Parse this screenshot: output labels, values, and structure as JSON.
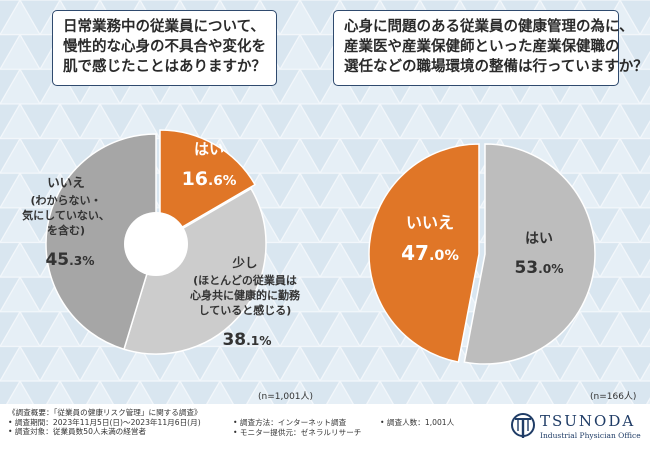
{
  "colors": {
    "orange": "#e07627",
    "gray_dark": "#a6a6a6",
    "gray_mid": "#bdbdbd",
    "gray_light": "#cccccc",
    "navy": "#2f4a6e"
  },
  "left_panel": {
    "title_lines": [
      "日常業務中の従業員について、",
      "慢性的な心身の不具合や変化を",
      "肌で感じたことはありますか？"
    ],
    "sample": "(n=1,001人)"
  },
  "right_panel": {
    "title_lines": [
      "心身に問題のある従業員の健康管理の為に、",
      "産業医や産業保健師といった産業保健職の",
      "選任などの職場環境の整備は行っていますか？"
    ],
    "sample": "(n=166人)"
  },
  "chart_data": [
    {
      "type": "pie",
      "variant": "donut",
      "title": "日常業務中の従業員について、慢性的な心身の不具合や変化を肌で感じたことはありますか？",
      "slices": [
        {
          "label": "はい",
          "value": 16.6,
          "display": "16.6%",
          "sublabel": [],
          "color": "#e07627"
        },
        {
          "label": "少し",
          "value": 38.1,
          "display": "38.1%",
          "sublabel": [
            "(ほとんどの従業員は",
            "心身共に健康的に勤務",
            "していると感じる)"
          ],
          "color": "#cccccc"
        },
        {
          "label": "いいえ",
          "value": 45.3,
          "display": "45.3%",
          "sublabel": [
            "(わからない・",
            "気にしていない、",
            "を含む)"
          ],
          "color": "#a6a6a6"
        }
      ]
    },
    {
      "type": "pie",
      "title": "心身に問題のある従業員の健康管理の為に、産業医や産業保健師といった産業保健職の選任などの職場環境の整備は行っていますか？",
      "slices": [
        {
          "label": "はい",
          "value": 53.0,
          "display": "53.0%",
          "sublabel": [],
          "color": "#bdbdbd"
        },
        {
          "label": "いいえ",
          "value": 47.0,
          "display": "47.0%",
          "sublabel": [],
          "color": "#e07627"
        }
      ]
    }
  ],
  "footer": {
    "col1": [
      "《調査概要：「従業員の健康リスク管理」に関する調査》",
      "• 調査期間：2023年11月5日(日)〜2023年11月6日(月)",
      "• 調査対象：従業員数50人未満の経営者"
    ],
    "col2": [
      "• 調査方法：インターネット調査",
      "• モニター提供元：ゼネラルリサーチ"
    ],
    "col3": [
      "• 調査人数：1,001人"
    ]
  },
  "logo": {
    "name": "TSUNODA",
    "subtitle": "Industrial Physician Office",
    "icon": "tsunoda-logo-icon"
  }
}
